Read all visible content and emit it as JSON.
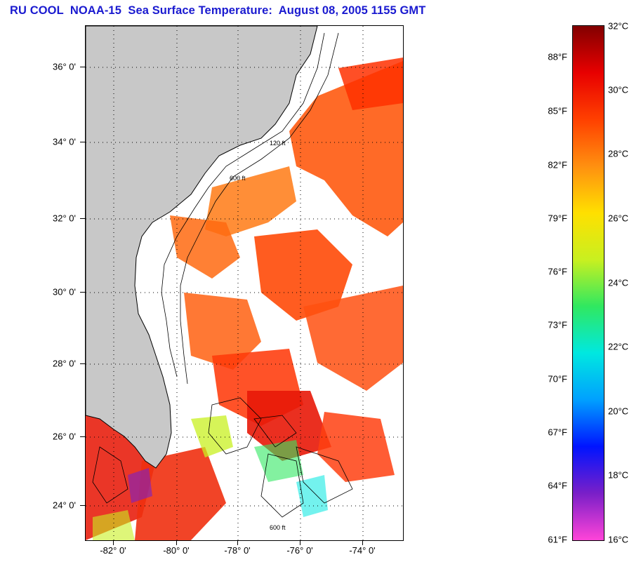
{
  "title": "RU COOL  NOAA-15  Sea Surface Temperature:  August 08, 2005 1155 GMT",
  "map": {
    "lat_ticks": [
      "36° 0'",
      "34° 0'",
      "32° 0'",
      "30° 0'",
      "28° 0'",
      "26° 0'",
      "24° 0'"
    ],
    "lon_ticks": [
      "-82° 0'",
      "-80° 0'",
      "-78° 0'",
      "-76° 0'",
      "-74° 0'"
    ],
    "isobath_labels": [
      "120 ft",
      "600 ft",
      "600 ft"
    ],
    "colors": {
      "land": "#c8c8c8",
      "cloud": "#ffffff"
    }
  },
  "colorbar": {
    "fahrenheit": [
      "88°F",
      "85°F",
      "82°F",
      "79°F",
      "76°F",
      "73°F",
      "70°F",
      "67°F",
      "64°F",
      "61°F"
    ],
    "celsius": [
      "32°C",
      "30°C",
      "28°C",
      "26°C",
      "24°C",
      "22°C",
      "20°C",
      "18°C",
      "16°C"
    ],
    "range_c": [
      16,
      32
    ],
    "colors": [
      "#ff44d8",
      "#7a1fc8",
      "#0014ff",
      "#00a0ff",
      "#00e8e0",
      "#30e860",
      "#c8f020",
      "#ffe000",
      "#ff9010",
      "#ff4000",
      "#e80000",
      "#820000"
    ]
  }
}
